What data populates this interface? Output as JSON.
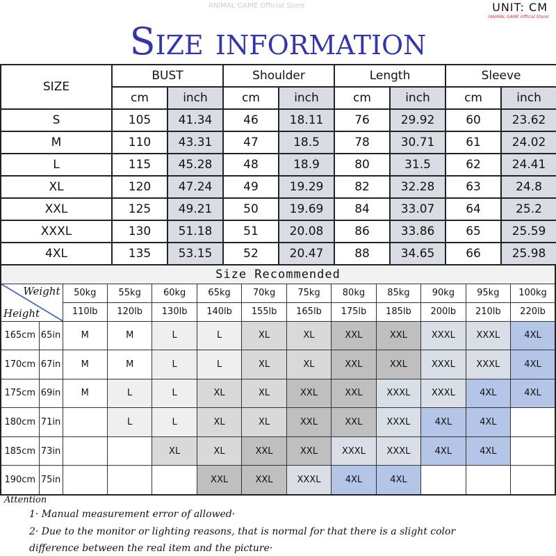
{
  "header": {
    "title": "Size information",
    "unit": "UNIT: CM",
    "unit_sub": "(ANIMAL GAME Official Store)",
    "watermark": "ANIMAL GAME Official Store"
  },
  "size_table": {
    "size_label": "SIZE",
    "unit_cm": "cm",
    "unit_inch": "inch",
    "groups": [
      "BUST",
      "Shoulder",
      "Length",
      "Sleeve"
    ],
    "rows": [
      [
        "S",
        "105",
        "41.34",
        "46",
        "18.11",
        "76",
        "29.92",
        "60",
        "23.62"
      ],
      [
        "M",
        "110",
        "43.31",
        "47",
        "18.5",
        "78",
        "30.71",
        "61",
        "24.02"
      ],
      [
        "L",
        "115",
        "45.28",
        "48",
        "18.9",
        "80",
        "31.5",
        "62",
        "24.41"
      ],
      [
        "XL",
        "120",
        "47.24",
        "49",
        "19.29",
        "82",
        "32.28",
        "63",
        "24.8"
      ],
      [
        "XXL",
        "125",
        "49.21",
        "50",
        "19.69",
        "84",
        "33.07",
        "64",
        "25.2"
      ],
      [
        "XXXL",
        "130",
        "51.18",
        "51",
        "20.08",
        "86",
        "33.86",
        "65",
        "25.59"
      ],
      [
        "4XL",
        "135",
        "53.15",
        "52",
        "20.47",
        "88",
        "34.65",
        "66",
        "25.98"
      ]
    ]
  },
  "recommend": {
    "title": "Size Recommended",
    "weight_label": "Weight",
    "height_label": "Height",
    "weights_kg": [
      "50kg",
      "55kg",
      "60kg",
      "65kg",
      "70kg",
      "75kg",
      "80kg",
      "85kg",
      "90kg",
      "95kg",
      "100kg"
    ],
    "weights_lb": [
      "110lb",
      "120lb",
      "130lb",
      "140lb",
      "155lb",
      "165lb",
      "175lb",
      "185lb",
      "200lb",
      "210lb",
      "220lb"
    ],
    "colors": {
      "M": "#ffffff",
      "L": "#efefef",
      "XL": "#d9d9d9",
      "XXL": "#bfbfbf",
      "XXXL": "#dadfe7",
      "4XL": "#b4c5e8",
      "": "#ffffff"
    },
    "rows": [
      {
        "cm": "165cm",
        "in": "65in",
        "sizes": [
          "M",
          "M",
          "L",
          "L",
          "XL",
          "XL",
          "XXL",
          "XXL",
          "XXXL",
          "XXXL",
          "4XL"
        ]
      },
      {
        "cm": "170cm",
        "in": "67in",
        "sizes": [
          "M",
          "M",
          "L",
          "L",
          "XL",
          "XL",
          "XXL",
          "XXL",
          "XXXL",
          "XXXL",
          "4XL"
        ]
      },
      {
        "cm": "175cm",
        "in": "69in",
        "sizes": [
          "M",
          "L",
          "L",
          "XL",
          "XL",
          "XXL",
          "XXL",
          "XXXL",
          "XXXL",
          "4XL",
          "4XL"
        ]
      },
      {
        "cm": "180cm",
        "in": "71in",
        "sizes": [
          "",
          "L",
          "L",
          "XL",
          "XL",
          "XXL",
          "XXL",
          "XXXL",
          "4XL",
          "4XL",
          ""
        ]
      },
      {
        "cm": "185cm",
        "in": "73in",
        "sizes": [
          "",
          "",
          "XL",
          "XL",
          "XXL",
          "XXL",
          "XXXL",
          "XXXL",
          "4XL",
          "4XL",
          ""
        ]
      },
      {
        "cm": "190cm",
        "in": "75in",
        "sizes": [
          "",
          "",
          "",
          "XXL",
          "XXL",
          "XXXL",
          "4XL",
          "4XL",
          "",
          "",
          ""
        ]
      }
    ]
  },
  "attention": {
    "title": "Attention",
    "notes": [
      "1· Manual measurement error of allowed·",
      "2·  Due to the monitor or lighting reasons, that is normal for that there is a slight color",
      "difference between the real item and the picture·"
    ]
  }
}
